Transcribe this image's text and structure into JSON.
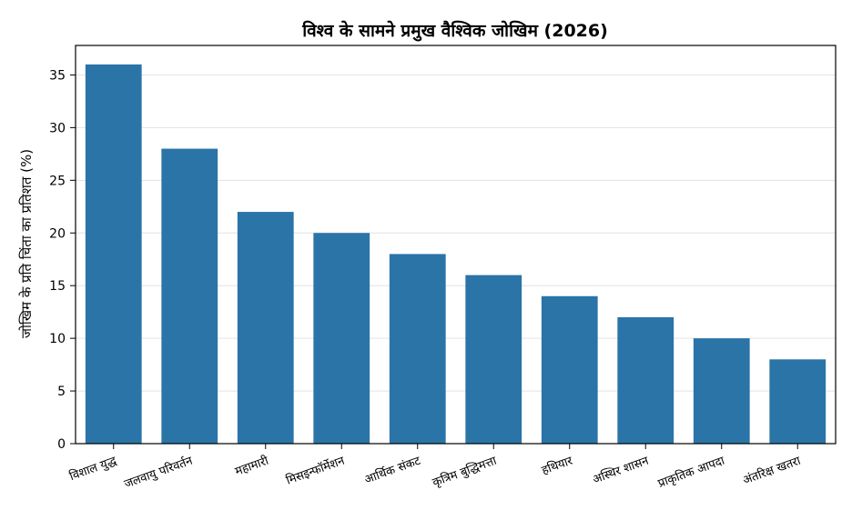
{
  "chart_data": {
    "type": "bar",
    "title": "विश्व के सामने प्रमुख वैश्विक जोखिम (2026)",
    "xlabel": "",
    "ylabel": "जोखिम के प्रति चिंता का प्रतिशत (%)",
    "categories": [
      "विशाल युद्ध",
      "जलवायु परिवर्तन",
      "महामारी",
      "मिसइन्फॉर्मेशन",
      "आर्थिक संकट",
      "कृत्रिम बुद्धिमत्ता",
      "हथियार",
      "अस्थिर शासन",
      "प्राकृतिक आपदा",
      "अंतरिक्ष खतरा"
    ],
    "values": [
      36,
      28,
      22,
      20,
      18,
      16,
      14,
      12,
      10,
      8
    ],
    "ylim": [
      0,
      37.8
    ],
    "yticks": [
      0,
      5,
      10,
      15,
      20,
      25,
      30,
      35
    ],
    "grid": true,
    "bar_color": "#2a74a8",
    "grid_color": "#d9d9d9"
  }
}
